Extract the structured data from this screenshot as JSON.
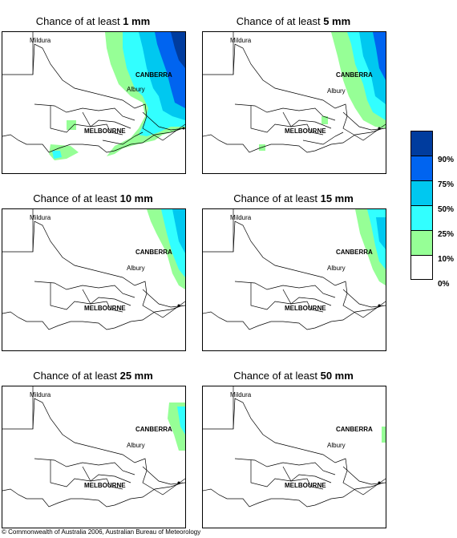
{
  "panels": [
    {
      "lead": "Chance of at least",
      "amount": "1 mm"
    },
    {
      "lead": "Chance of at least",
      "amount": "5 mm"
    },
    {
      "lead": "Chance of at least",
      "amount": "10 mm"
    },
    {
      "lead": "Chance of at least",
      "amount": "15 mm"
    },
    {
      "lead": "Chance of at least",
      "amount": "25 mm"
    },
    {
      "lead": "Chance of at least",
      "amount": "50 mm"
    }
  ],
  "places": {
    "mildura": "Mildura",
    "canberra": "CANBERRA",
    "albury": "Albury",
    "melbourne": "MELBOURNE"
  },
  "legend": {
    "labels": [
      "90%",
      "75%",
      "50%",
      "25%",
      "10%",
      "0%"
    ],
    "colors": [
      "#003c9e",
      "#0064f0",
      "#00c8f0",
      "#32ffff",
      "#96ff96",
      "#ffffff"
    ]
  },
  "copyright": "© Commonwealth of Australia 2006, Australian Bureau of Meteorology"
}
